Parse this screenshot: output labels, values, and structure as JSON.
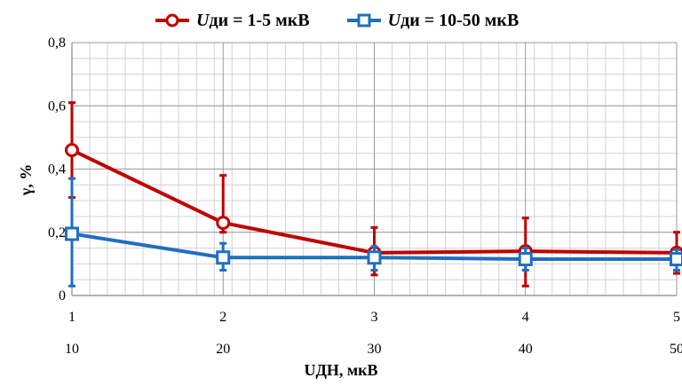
{
  "chart_data": {
    "type": "line",
    "xlabel": "UДН, мкВ",
    "ylabel": "γ, %",
    "ylim": [
      0,
      0.8
    ],
    "y_ticks": [
      "0",
      "0,2",
      "0,4",
      "0,6",
      "0,8"
    ],
    "x_ticks_top": [
      "1",
      "2",
      "3",
      "4",
      "5"
    ],
    "x_ticks_bottom": [
      "10",
      "20",
      "30",
      "40",
      "50"
    ],
    "x": [
      1,
      2,
      3,
      4,
      5
    ],
    "legend_position": "top",
    "grid": true,
    "series": [
      {
        "name": "Uди = 1-5 мкВ",
        "color": "#c00000",
        "marker": "circle",
        "values": [
          0.46,
          0.23,
          0.135,
          0.14,
          0.135
        ],
        "err_low": [
          0.31,
          0.2,
          0.065,
          0.03,
          0.07
        ],
        "err_high": [
          0.61,
          0.38,
          0.215,
          0.245,
          0.2
        ]
      },
      {
        "name": "Uди = 10-50 мкВ",
        "color": "#1f6fc0",
        "marker": "square",
        "values": [
          0.195,
          0.12,
          0.12,
          0.115,
          0.115
        ],
        "err_low": [
          0.03,
          0.08,
          0.08,
          0.08,
          0.08
        ],
        "err_high": [
          0.37,
          0.165,
          0.155,
          0.15,
          0.145
        ]
      }
    ]
  },
  "legend": {
    "item1_var": "U",
    "item1_rest": "ди = 1-5 мкВ",
    "item2_var": "U",
    "item2_rest": "ди = 10-50 мкВ"
  }
}
